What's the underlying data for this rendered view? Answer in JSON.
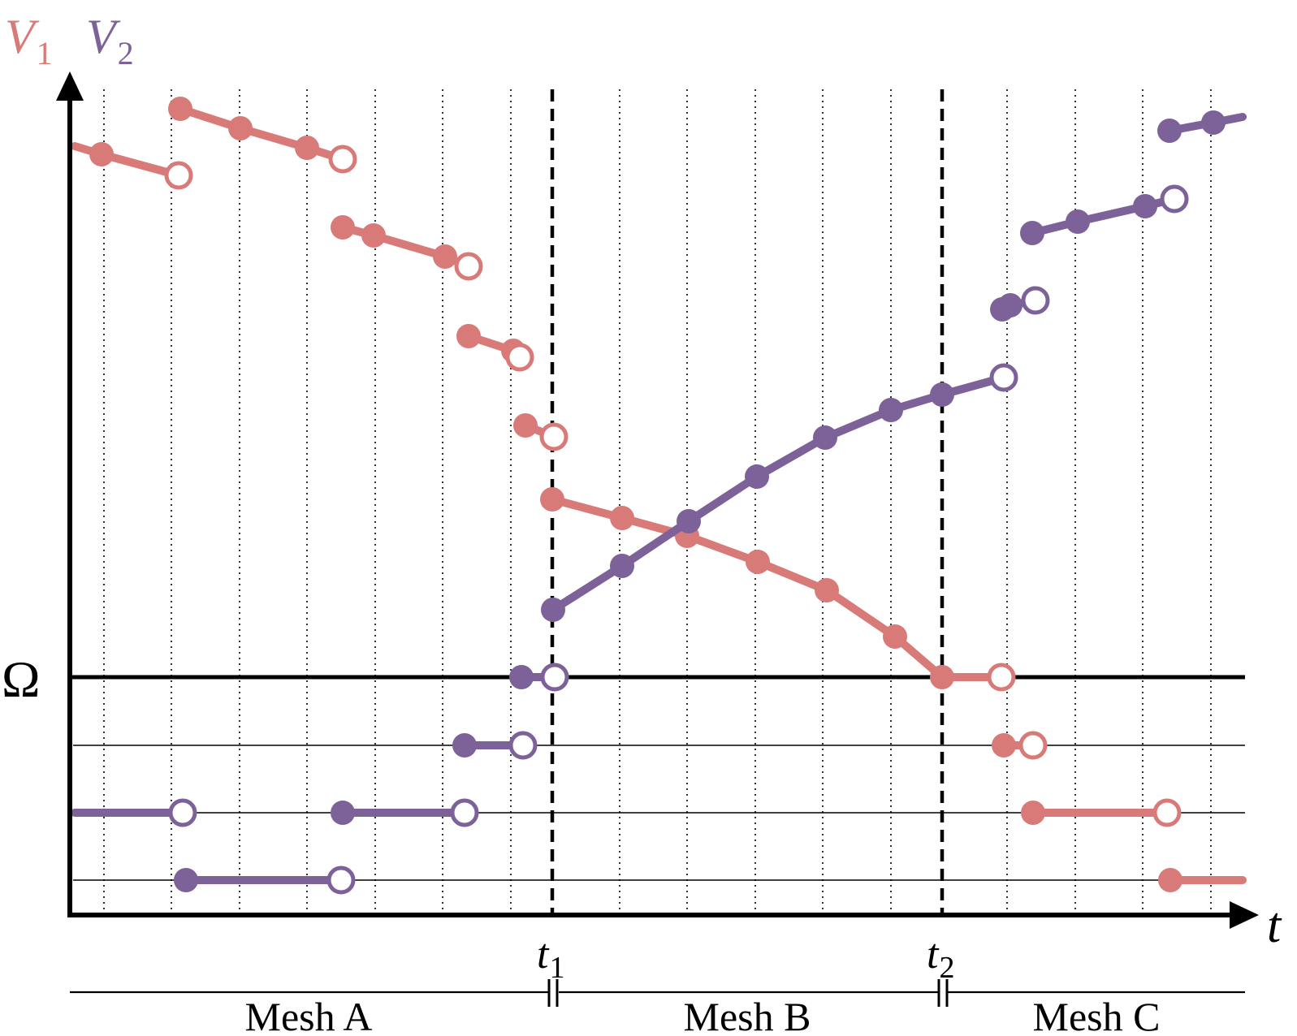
{
  "labels": {
    "v1_letter": "V",
    "v1_sub": "1",
    "v2_letter": "V",
    "v2_sub": "2",
    "omega": "Ω",
    "t_axis": "t",
    "t1_letter": "t",
    "t1_sub": "1",
    "t2_letter": "t",
    "t2_sub": "2",
    "mesh_a": "Mesh A",
    "mesh_b": "Mesh B",
    "mesh_c": "Mesh C"
  },
  "colors": {
    "v1": "#d87a78",
    "v2": "#7d6299",
    "axis": "#000000",
    "grid": "#000000"
  }
}
